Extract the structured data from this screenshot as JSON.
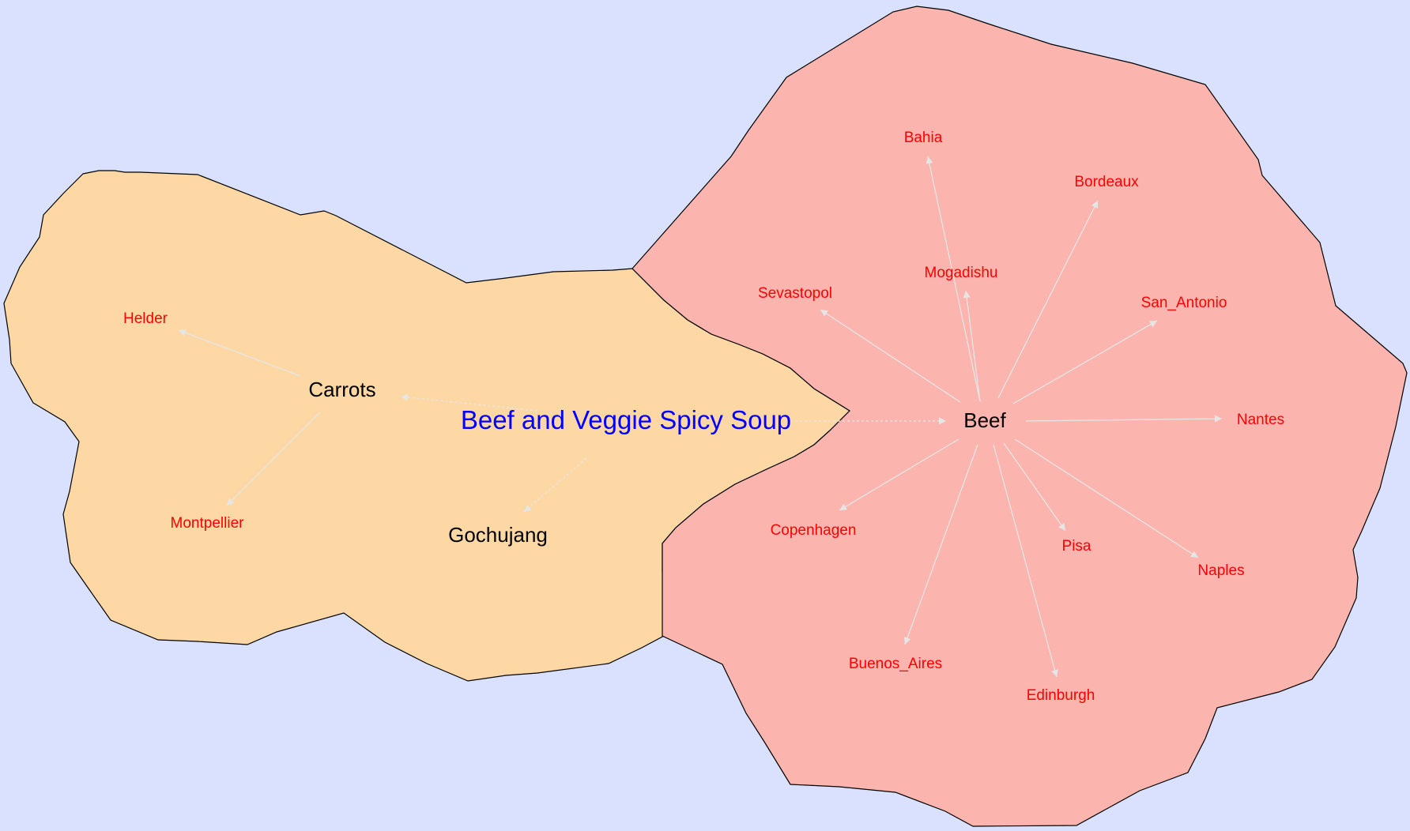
{
  "title": "Beef and Veggie Spicy Soup",
  "colors": {
    "background": "#d9e1fe",
    "veggie_region": "#fdd8a5",
    "beef_region": "#fbb4ae",
    "border": "#000000",
    "title": "#0000ff",
    "leaf_text": "#ff0000",
    "main_text": "#000000",
    "edge": "#e6e6e6"
  },
  "nodes": {
    "carrots": "Carrots",
    "gochujang": "Gochujang",
    "beef": "Beef",
    "helder": "Helder",
    "montpellier": "Montpellier",
    "bahia": "Bahia",
    "bordeaux": "Bordeaux",
    "mogadishu": "Mogadishu",
    "sevastopol": "Sevastopol",
    "san_antonio": "San_Antonio",
    "nantes": "Nantes",
    "copenhagen": "Copenhagen",
    "pisa": "Pisa",
    "naples": "Naples",
    "buenos_aires": "Buenos_Aires",
    "edinburgh": "Edinburgh"
  }
}
